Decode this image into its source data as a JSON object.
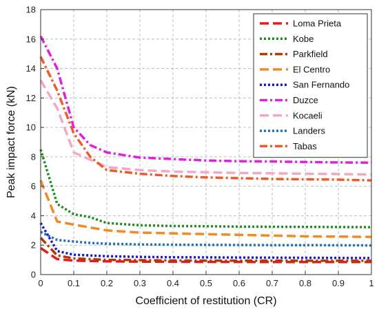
{
  "chart_data": {
    "type": "line",
    "title": "",
    "xlabel": "Coefficient of restitution (CR)",
    "ylabel": "Peak impact force (kN)",
    "xlim": [
      0,
      1
    ],
    "ylim": [
      0,
      18
    ],
    "xticks": [
      "0",
      "0.1",
      "0.2",
      "0.3",
      "0.4",
      "0.5",
      "0.6",
      "0.7",
      "0.8",
      "0.9",
      "1"
    ],
    "yticks": [
      "0",
      "2",
      "4",
      "6",
      "8",
      "10",
      "12",
      "14",
      "16",
      "18"
    ],
    "grid": true,
    "legend_position": "top-right",
    "x": [
      0,
      0.05,
      0.1,
      0.15,
      0.2,
      0.3,
      0.4,
      0.5,
      0.6,
      0.7,
      0.8,
      0.9,
      1.0
    ],
    "series": [
      {
        "name": "Loma Prieta",
        "color": "#e41a1c",
        "dash": "long",
        "values": [
          1.8,
          1.05,
          0.95,
          0.92,
          0.9,
          0.88,
          0.87,
          0.86,
          0.86,
          0.85,
          0.85,
          0.85,
          0.85
        ]
      },
      {
        "name": "Kobe",
        "color": "#1c8c1c",
        "dash": "dot",
        "values": [
          8.5,
          4.8,
          4.1,
          3.9,
          3.5,
          3.35,
          3.3,
          3.28,
          3.26,
          3.25,
          3.24,
          3.23,
          3.22
        ]
      },
      {
        "name": "Parkfield",
        "color": "#b03a00",
        "dash": "dashdot",
        "values": [
          2.5,
          1.3,
          1.1,
          1.05,
          1.0,
          0.98,
          0.96,
          0.95,
          0.95,
          0.95,
          0.94,
          0.94,
          0.94
        ]
      },
      {
        "name": "El Centro",
        "color": "#f08a24",
        "dash": "long",
        "values": [
          6.4,
          3.6,
          3.4,
          3.2,
          3.0,
          2.85,
          2.8,
          2.75,
          2.7,
          2.65,
          2.6,
          2.58,
          2.56
        ]
      },
      {
        "name": "San Fernando",
        "color": "#1515d6",
        "dash": "dot",
        "values": [
          3.5,
          1.6,
          1.35,
          1.3,
          1.25,
          1.2,
          1.18,
          1.17,
          1.16,
          1.15,
          1.14,
          1.13,
          1.12
        ]
      },
      {
        "name": "Duzce",
        "color": "#e020e0",
        "dash": "dashdot",
        "values": [
          16.2,
          14.0,
          10.0,
          8.8,
          8.3,
          7.95,
          7.85,
          7.75,
          7.7,
          7.68,
          7.65,
          7.62,
          7.6
        ]
      },
      {
        "name": "Kocaeli",
        "color": "#f3a6c8",
        "dash": "long",
        "values": [
          13.2,
          11.3,
          8.3,
          7.8,
          7.3,
          7.1,
          7.0,
          6.95,
          6.9,
          6.88,
          6.85,
          6.83,
          6.8
        ]
      },
      {
        "name": "Landers",
        "color": "#1f6fc4",
        "dash": "dot",
        "values": [
          2.9,
          2.35,
          2.25,
          2.15,
          2.1,
          2.05,
          2.03,
          2.02,
          2.01,
          2.0,
          2.0,
          1.99,
          1.98
        ]
      },
      {
        "name": "Tabas",
        "color": "#f05a28",
        "dash": "dashdot",
        "values": [
          14.8,
          12.5,
          9.6,
          8.0,
          7.1,
          6.85,
          6.7,
          6.6,
          6.55,
          6.5,
          6.47,
          6.45,
          6.4
        ]
      }
    ]
  }
}
